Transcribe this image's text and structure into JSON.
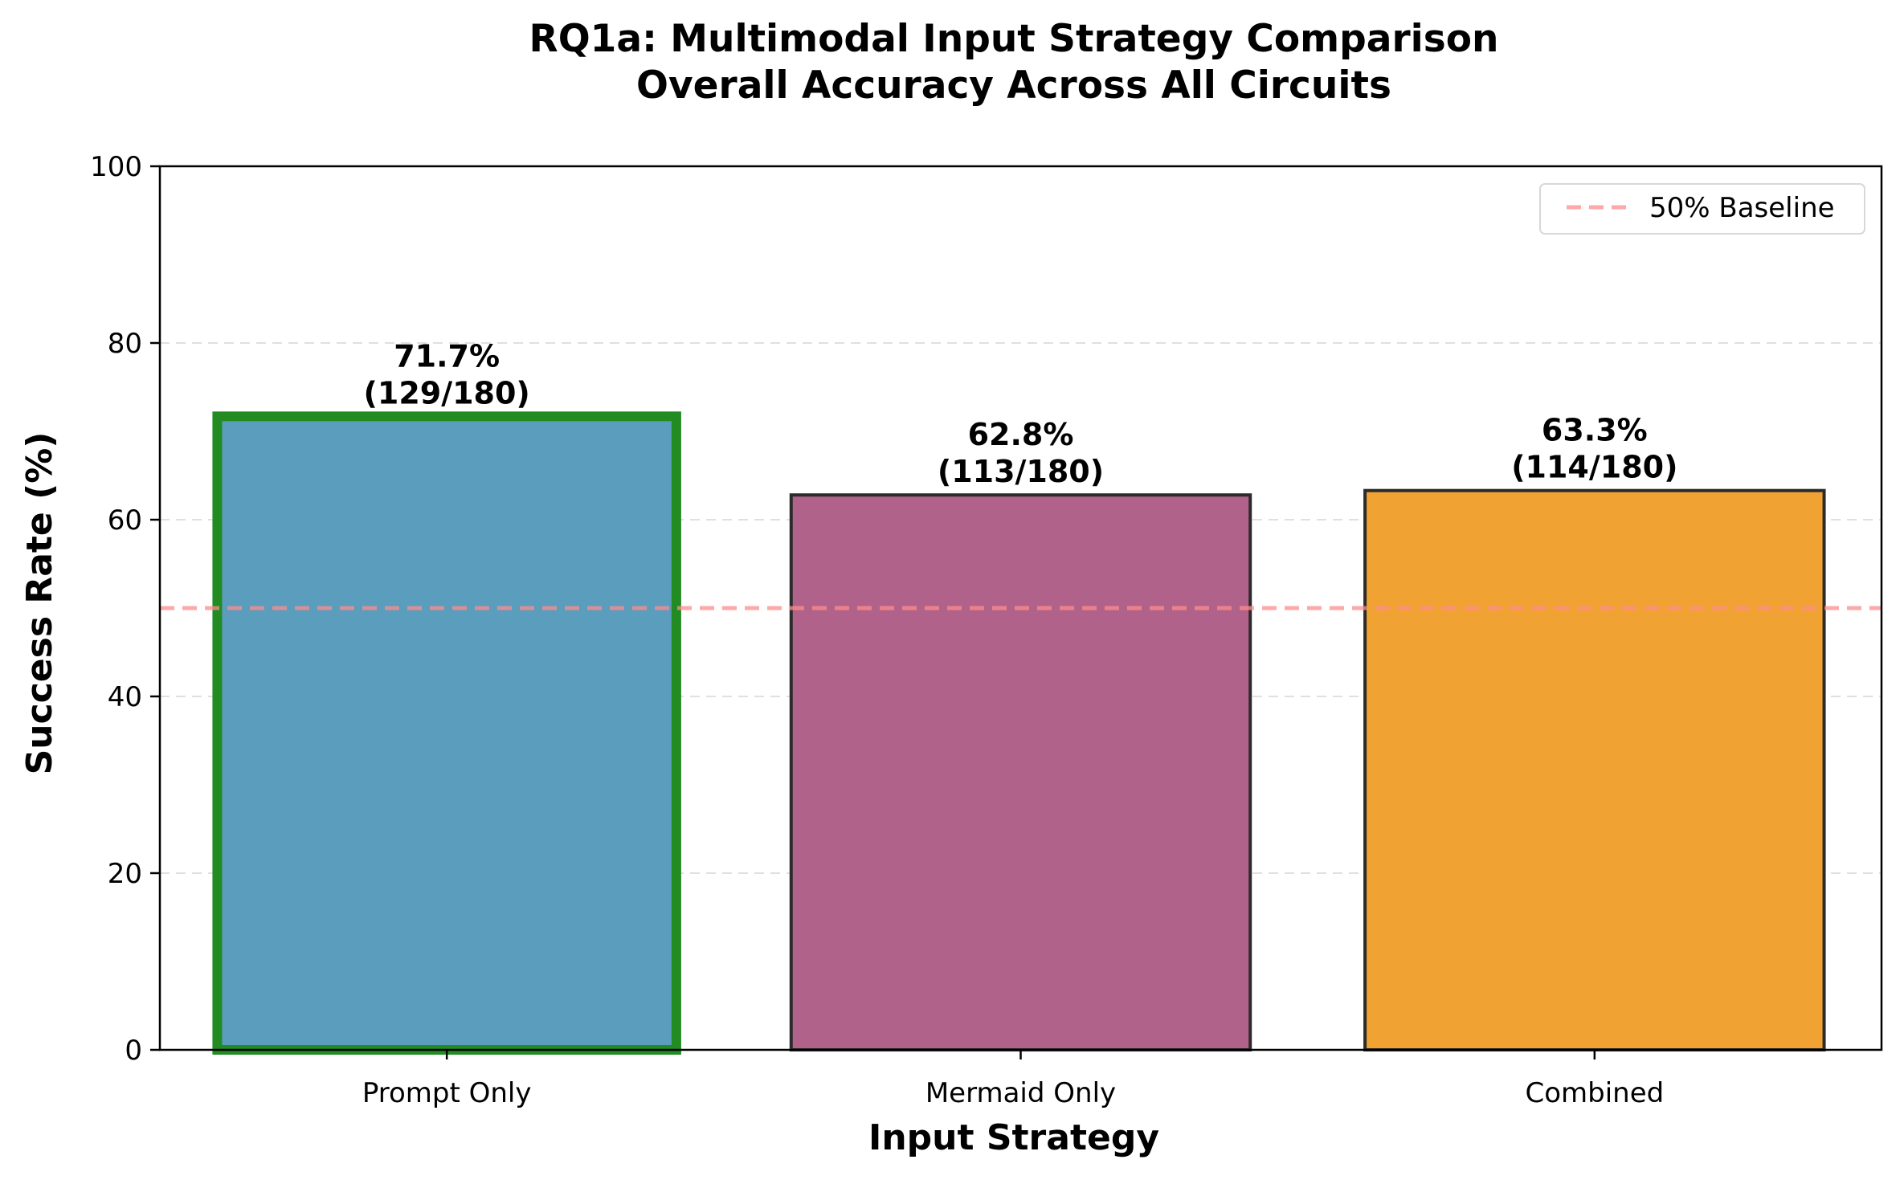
{
  "chart_data": {
    "type": "bar",
    "title": [
      "RQ1a: Multimodal Input Strategy Comparison",
      "Overall Accuracy Across All Circuits"
    ],
    "xlabel": "Input Strategy",
    "ylabel": "Success Rate (%)",
    "ylim": [
      0,
      100
    ],
    "yticks": [
      0,
      20,
      40,
      60,
      80,
      100
    ],
    "grid": "y-axis, dashed",
    "categories": [
      "Prompt Only",
      "Mermaid Only",
      "Combined"
    ],
    "values": [
      71.7,
      62.8,
      63.3
    ],
    "data_labels": [
      [
        "71.7%",
        "(129/180)"
      ],
      [
        "62.8%",
        "(113/180)"
      ],
      [
        "63.3%",
        "(114/180)"
      ]
    ],
    "bar_colors": [
      "#5a9dbc",
      "#b1628a",
      "#f0a333"
    ],
    "bar_edge_colors": [
      "#228b22",
      "#2b2b2b",
      "#2b2b2b"
    ],
    "highlighted_bar": "Prompt Only",
    "baseline": {
      "value": 50,
      "label": "50% Baseline",
      "color": "#ff8c8c",
      "style": "dashed"
    },
    "legend": {
      "position": "top-right",
      "entries": [
        "50% Baseline"
      ]
    }
  }
}
